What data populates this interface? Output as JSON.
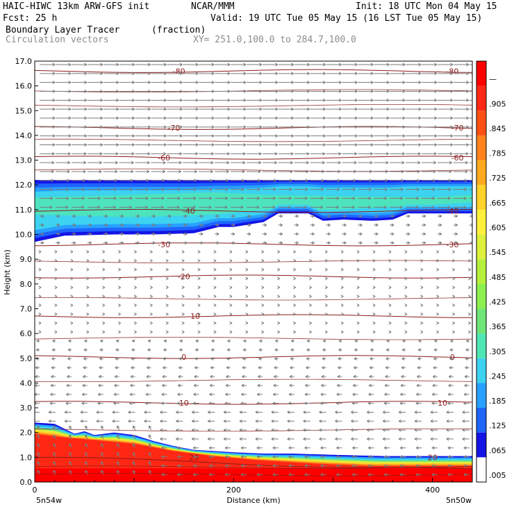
{
  "header": {
    "model": "HAIC-HIWC 13km ARW-GFS init",
    "institution": "NCAR/MMM",
    "init": "Init: 18 UTC Mon 04 May 15",
    "fcst": "Fcst:   25 h",
    "valid": "Valid: 19 UTC Tue 05 May 15 (16 LST Tue 05 May 15)",
    "field": "Boundary Layer Tracer",
    "field_units": "(fraction)",
    "vectors": "Circulation vectors",
    "xy": "XY= 251.0,100.0 to 284.7,100.0"
  },
  "colors": {
    "contour": "#8b1a1a",
    "vector": "#7a7a7a",
    "fill_scale": [
      "#ffffff",
      "#1414e6",
      "#1e64ff",
      "#28a0ff",
      "#3cd2f0",
      "#50e6b4",
      "#6ee678",
      "#8cf050",
      "#b4f03c",
      "#dcf03c",
      "#fff03c",
      "#ffd228",
      "#ffaa1e",
      "#ff821e",
      "#ff5014",
      "#ff2814",
      "#ff0000"
    ]
  },
  "chart_data": {
    "type": "heatmap",
    "title": "Boundary Layer Tracer",
    "xlabel": "Distance (km)",
    "ylabel": "Height (km)",
    "xlim": [
      0,
      440
    ],
    "ylim": [
      0,
      17
    ],
    "x_ticks": [
      0,
      200,
      400
    ],
    "x_tick_labels": [
      "0",
      "200",
      "400"
    ],
    "x_end_labels": [
      "5n54w",
      "5n50w"
    ],
    "y_ticks": [
      0,
      1,
      2,
      3,
      4,
      5,
      6,
      7,
      8,
      9,
      10,
      11,
      12,
      13,
      14,
      15,
      16,
      17
    ],
    "y_tick_labels": [
      "0.0",
      "1.0",
      "2.0",
      "3.0",
      "4.0",
      "5.0",
      "6.0",
      "7.0",
      "8.0",
      "9.0",
      "10.0",
      "11.0",
      "12.0",
      "13.0",
      "14.0",
      "15.0",
      "16.0",
      "17.0"
    ],
    "colorbar_labels": [
      ".005",
      ".065",
      ".125",
      ".185",
      ".245",
      ".305",
      ".365",
      ".425",
      ".485",
      ".545",
      ".605",
      ".665",
      ".725",
      ".785",
      ".845",
      ".905",
      "—"
    ],
    "temperature_contours": [
      {
        "label": "20",
        "h": 1.0
      },
      {
        "label": "10",
        "h": 3.2
      },
      {
        "label": "0",
        "h": 5.05
      },
      {
        "label": "-10",
        "h": 6.7
      },
      {
        "label": "-20",
        "h": 8.3
      },
      {
        "label": "-30",
        "h": 9.6
      },
      {
        "label": "-40",
        "h": 10.95
      },
      {
        "label": "-60",
        "h": 13.1
      },
      {
        "label": "-70",
        "h": 14.3
      },
      {
        "label": "-80",
        "h": 16.6
      }
    ],
    "upper_layer": {
      "top": 12.2,
      "bottom": [
        [
          0,
          9.7
        ],
        [
          30,
          9.95
        ],
        [
          80,
          10.0
        ],
        [
          120,
          10.0
        ],
        [
          160,
          10.05
        ],
        [
          185,
          10.3
        ],
        [
          200,
          10.3
        ],
        [
          230,
          10.5
        ],
        [
          245,
          10.85
        ],
        [
          265,
          10.85
        ],
        [
          275,
          10.85
        ],
        [
          290,
          10.55
        ],
        [
          310,
          10.6
        ],
        [
          340,
          10.55
        ],
        [
          360,
          10.6
        ],
        [
          375,
          10.85
        ],
        [
          440,
          10.85
        ]
      ],
      "core": [
        [
          0,
          10.8,
          11.5
        ],
        [
          100,
          10.7,
          11.6
        ],
        [
          180,
          10.8,
          11.7
        ],
        [
          230,
          11.0,
          11.6
        ],
        [
          300,
          11.0,
          11.55
        ],
        [
          400,
          11.2,
          11.5
        ],
        [
          440,
          11.3,
          11.6
        ]
      ]
    },
    "lower_layer": {
      "top": [
        [
          0,
          2.4
        ],
        [
          20,
          2.35
        ],
        [
          30,
          2.15
        ],
        [
          40,
          1.95
        ],
        [
          50,
          2.05
        ],
        [
          60,
          1.9
        ],
        [
          80,
          2.0
        ],
        [
          100,
          1.9
        ],
        [
          120,
          1.65
        ],
        [
          140,
          1.45
        ],
        [
          160,
          1.3
        ],
        [
          180,
          1.25
        ],
        [
          200,
          1.2
        ],
        [
          230,
          1.15
        ],
        [
          260,
          1.15
        ],
        [
          300,
          1.1
        ],
        [
          350,
          1.05
        ],
        [
          400,
          1.05
        ],
        [
          440,
          1.05
        ]
      ],
      "red_top": [
        [
          0,
          1.95
        ],
        [
          30,
          1.8
        ],
        [
          60,
          1.7
        ],
        [
          100,
          1.55
        ],
        [
          140,
          1.25
        ],
        [
          180,
          1.05
        ],
        [
          220,
          0.9
        ],
        [
          280,
          0.75
        ],
        [
          340,
          0.65
        ],
        [
          400,
          0.65
        ],
        [
          440,
          0.65
        ]
      ]
    },
    "vector_field": "circulation vectors (u,w) in cross-section"
  }
}
